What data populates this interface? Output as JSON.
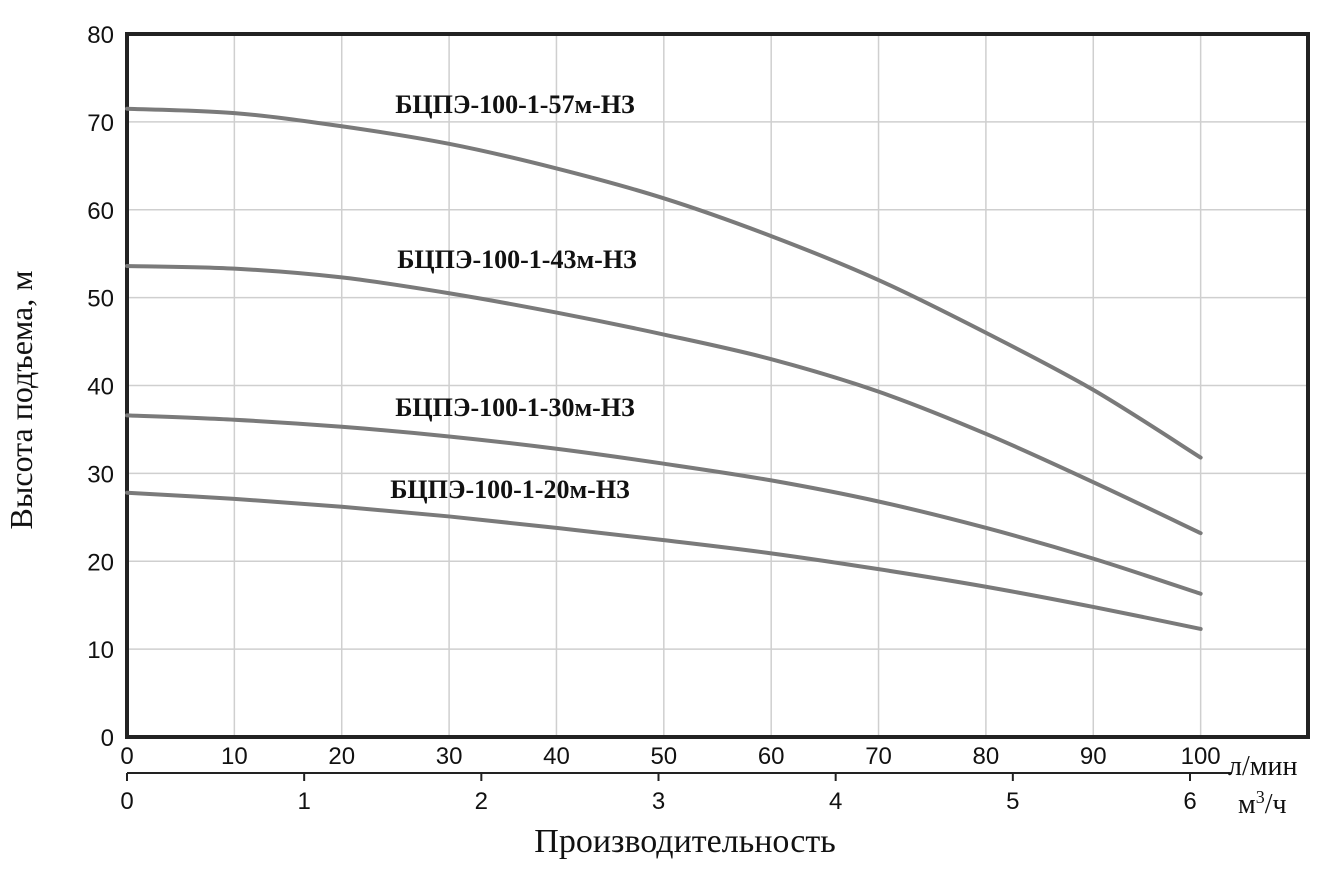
{
  "chart_data": {
    "type": "line",
    "xlabel": "Производительность",
    "ylabel": "Высота подъема, м",
    "x_unit_primary": "л/мин",
    "x_unit_secondary": "м",
    "x_unit_secondary_sup": "3",
    "x_unit_secondary_tail": "/ч",
    "xlim": [
      0,
      110
    ],
    "ylim": [
      0,
      80
    ],
    "x_ticks": [
      "0",
      "10",
      "20",
      "30",
      "40",
      "50",
      "60",
      "70",
      "80",
      "90",
      "100"
    ],
    "x_ticks_values": [
      0,
      10,
      20,
      30,
      40,
      50,
      60,
      70,
      80,
      90,
      100
    ],
    "x2_ticks": [
      "0",
      "1",
      "2",
      "3",
      "4",
      "5",
      "6"
    ],
    "x2_ticks_values": [
      0,
      1,
      2,
      3,
      4,
      5,
      6
    ],
    "y_ticks": [
      "0",
      "10",
      "20",
      "30",
      "40",
      "50",
      "60",
      "70",
      "80"
    ],
    "y_ticks_values": [
      0,
      10,
      20,
      30,
      40,
      50,
      60,
      70,
      80
    ],
    "grid": true,
    "line_color": "#7a7a7a",
    "series": [
      {
        "name": "БЦПЭ-100-1-57м-НЗ",
        "x": [
          0,
          10,
          20,
          30,
          40,
          50,
          60,
          70,
          80,
          90,
          100
        ],
        "values": [
          71.5,
          71,
          69.5,
          67.5,
          64.7,
          61.3,
          57,
          52,
          46,
          39.5,
          31.8
        ]
      },
      {
        "name": "БЦПЭ-100-1-43м-НЗ",
        "x": [
          0,
          10,
          20,
          30,
          40,
          50,
          60,
          70,
          80,
          90,
          100
        ],
        "values": [
          53.6,
          53.3,
          52.3,
          50.5,
          48.3,
          45.8,
          43,
          39.3,
          34.5,
          29,
          23.2
        ]
      },
      {
        "name": "БЦПЭ-100-1-30м-НЗ",
        "x": [
          0,
          10,
          20,
          30,
          40,
          50,
          60,
          70,
          80,
          90,
          100
        ],
        "values": [
          36.6,
          36.1,
          35.3,
          34.2,
          32.8,
          31.1,
          29.2,
          26.8,
          23.8,
          20.3,
          16.3
        ]
      },
      {
        "name": "БЦПЭ-100-1-20м-НЗ",
        "x": [
          0,
          10,
          20,
          30,
          40,
          50,
          60,
          70,
          80,
          90,
          100
        ],
        "values": [
          27.8,
          27.1,
          26.2,
          25.1,
          23.8,
          22.4,
          20.9,
          19.1,
          17.1,
          14.8,
          12.3
        ]
      }
    ]
  }
}
